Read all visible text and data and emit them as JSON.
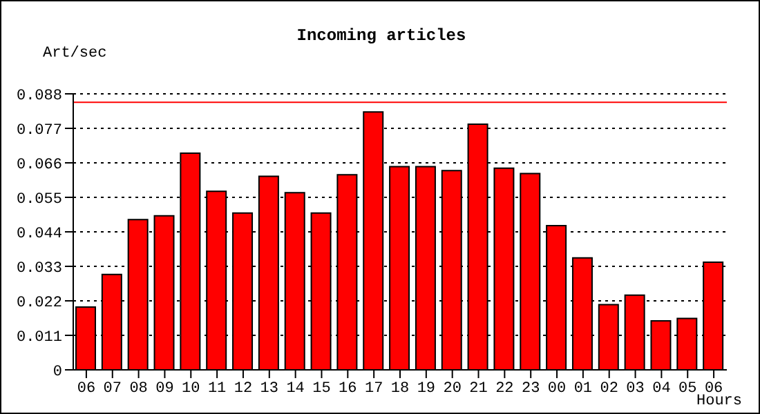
{
  "chart_data": {
    "type": "bar",
    "title": "Incoming articles",
    "xlabel": "Hours",
    "ylabel": "Art/sec",
    "categories": [
      "06",
      "07",
      "08",
      "09",
      "10",
      "11",
      "12",
      "13",
      "14",
      "15",
      "16",
      "17",
      "18",
      "19",
      "20",
      "21",
      "22",
      "23",
      "00",
      "01",
      "02",
      "03",
      "04",
      "05",
      "06"
    ],
    "values": [
      0.02,
      0.0304,
      0.0479,
      0.0491,
      0.0691,
      0.0569,
      0.05,
      0.0617,
      0.0565,
      0.05,
      0.0622,
      0.0822,
      0.0648,
      0.0648,
      0.0635,
      0.0783,
      0.0643,
      0.0626,
      0.046,
      0.0357,
      0.0208,
      0.0238,
      0.0156,
      0.0164,
      0.0343
    ],
    "color": "#ff0000",
    "ylim": [
      0,
      0.088
    ],
    "yticks": [
      0,
      0.011,
      0.022,
      0.033,
      0.044,
      0.055,
      0.066,
      0.077,
      0.088
    ],
    "grid": "y",
    "ref_lines": [
      {
        "axis": "y",
        "value": 0.0853,
        "color": "#ff0000"
      }
    ]
  }
}
